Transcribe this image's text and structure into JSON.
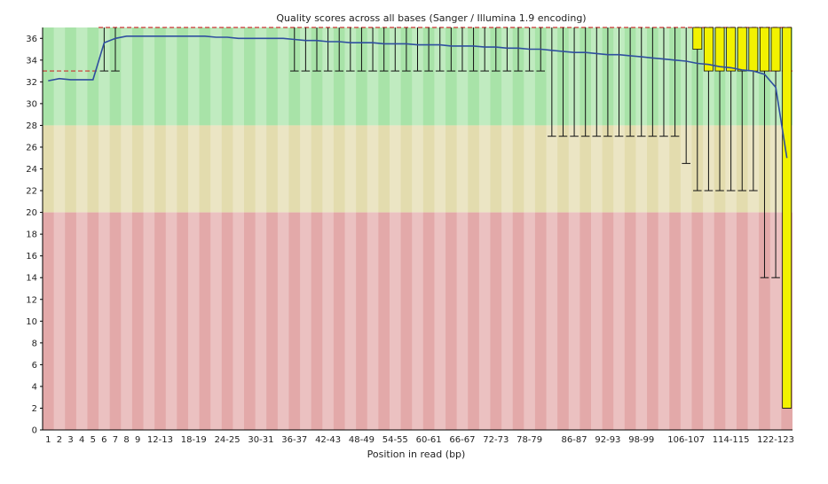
{
  "chart_data": {
    "type": "box",
    "title": "Quality scores across all bases (Sanger / Illumina 1.9 encoding)",
    "xlabel": "Position in read (bp)",
    "ylabel": "",
    "ylim": [
      0,
      37
    ],
    "yticks": [
      0,
      2,
      4,
      6,
      8,
      10,
      12,
      14,
      16,
      18,
      20,
      22,
      24,
      26,
      28,
      30,
      32,
      34,
      36
    ],
    "categories": [
      "1",
      "2",
      "3",
      "4",
      "5",
      "6",
      "7",
      "8",
      "9",
      "10-11",
      "12-13",
      "14-15",
      "16-17",
      "18-19",
      "20-21",
      "22-23",
      "24-25",
      "26-27",
      "28-29",
      "30-31",
      "32-33",
      "34-35",
      "36-37",
      "38-39",
      "40-41",
      "42-43",
      "44-45",
      "46-47",
      "48-49",
      "50-51",
      "52-53",
      "54-55",
      "56-57",
      "58-59",
      "60-61",
      "62-63",
      "64-65",
      "66-67",
      "68-69",
      "70-71",
      "72-73",
      "74-75",
      "76-77",
      "78-79",
      "80-81",
      "82-83",
      "84-85",
      "86-87",
      "88-89",
      "90-91",
      "92-93",
      "94-95",
      "96-97",
      "98-99",
      "100-101",
      "102-103",
      "104-105",
      "106-107",
      "108-109",
      "110-111",
      "112-113",
      "114-115",
      "116-117",
      "118-119",
      "120-121",
      "122-123",
      "124-125"
    ],
    "x_tick_labels": [
      "1",
      "2",
      "3",
      "4",
      "5",
      "6",
      "7",
      "8",
      "9",
      "12-13",
      "18-19",
      "24-25",
      "30-31",
      "36-37",
      "42-43",
      "48-49",
      "54-55",
      "60-61",
      "66-67",
      "72-73",
      "78-79",
      "86-87",
      "92-93",
      "98-99",
      "106-107",
      "114-115",
      "122-123"
    ],
    "quality_zones": [
      {
        "name": "good",
        "from": 28,
        "to": 37,
        "color": "#a8e3a8"
      },
      {
        "name": "reasonable",
        "from": 20,
        "to": 28,
        "color": "#e3dcae"
      },
      {
        "name": "poor",
        "from": 0,
        "to": 20,
        "color": "#e3a9a9"
      }
    ],
    "mean_line_color": "#2f4f9f",
    "box_color": "#f2f200",
    "median_line_color": "#cc3333",
    "series": [
      {
        "name": "Mean",
        "values": [
          32.1,
          32.3,
          32.2,
          32.2,
          32.2,
          35.6,
          36.0,
          36.2,
          36.2,
          36.2,
          36.2,
          36.2,
          36.2,
          36.2,
          36.2,
          36.1,
          36.1,
          36.0,
          36.0,
          36.0,
          36.0,
          36.0,
          35.9,
          35.8,
          35.8,
          35.7,
          35.7,
          35.6,
          35.6,
          35.6,
          35.5,
          35.5,
          35.5,
          35.4,
          35.4,
          35.4,
          35.3,
          35.3,
          35.3,
          35.2,
          35.2,
          35.1,
          35.1,
          35.0,
          35.0,
          34.9,
          34.8,
          34.7,
          34.7,
          34.6,
          34.5,
          34.5,
          34.4,
          34.3,
          34.2,
          34.1,
          34.0,
          33.9,
          33.7,
          33.6,
          33.4,
          33.3,
          33.1,
          33.0,
          32.7,
          31.5,
          25.0
        ]
      }
    ],
    "boxes": {
      "median": [
        33,
        33,
        33,
        33,
        33,
        37,
        37,
        37,
        37,
        37,
        37,
        37,
        37,
        37,
        37,
        37,
        37,
        37,
        37,
        37,
        37,
        37,
        37,
        37,
        37,
        37,
        37,
        37,
        37,
        37,
        37,
        37,
        37,
        37,
        37,
        37,
        37,
        37,
        37,
        37,
        37,
        37,
        37,
        37,
        37,
        37,
        37,
        37,
        37,
        37,
        37,
        37,
        37,
        37,
        37,
        37,
        37,
        37,
        37,
        37,
        37,
        37,
        37,
        37,
        37,
        37,
        37
      ],
      "q1": [
        33,
        33,
        33,
        33,
        33,
        37,
        37,
        37,
        37,
        37,
        37,
        37,
        37,
        37,
        37,
        37,
        37,
        37,
        37,
        37,
        37,
        37,
        37,
        37,
        37,
        37,
        37,
        37,
        37,
        37,
        37,
        37,
        37,
        37,
        37,
        37,
        37,
        37,
        37,
        37,
        37,
        37,
        37,
        37,
        37,
        37,
        37,
        37,
        37,
        37,
        37,
        37,
        37,
        37,
        37,
        37,
        37,
        37,
        35,
        33,
        33,
        33,
        33,
        33,
        33,
        33,
        2
      ],
      "q3": [
        33,
        33,
        33,
        33,
        33,
        37,
        37,
        37,
        37,
        37,
        37,
        37,
        37,
        37,
        37,
        37,
        37,
        37,
        37,
        37,
        37,
        37,
        37,
        37,
        37,
        37,
        37,
        37,
        37,
        37,
        37,
        37,
        37,
        37,
        37,
        37,
        37,
        37,
        37,
        37,
        37,
        37,
        37,
        37,
        37,
        37,
        37,
        37,
        37,
        37,
        37,
        37,
        37,
        37,
        37,
        37,
        37,
        37,
        37,
        37,
        37,
        37,
        37,
        37,
        37,
        37,
        37
      ],
      "p10": [
        33,
        33,
        33,
        33,
        33,
        33,
        33,
        37,
        37,
        37,
        37,
        37,
        37,
        37,
        37,
        37,
        37,
        37,
        37,
        37,
        37,
        37,
        33,
        33,
        33,
        33,
        33,
        33,
        33,
        33,
        33,
        33,
        33,
        33,
        33,
        33,
        33,
        33,
        33,
        33,
        33,
        33,
        33,
        33,
        33,
        27,
        27,
        27,
        27,
        27,
        27,
        27,
        27,
        27,
        27,
        27,
        27,
        24.5,
        22,
        22,
        22,
        22,
        22,
        22,
        14,
        14,
        2
      ],
      "p90": [
        33,
        33,
        33,
        33,
        33,
        37,
        37,
        37,
        37,
        37,
        37,
        37,
        37,
        37,
        37,
        37,
        37,
        37,
        37,
        37,
        37,
        37,
        37,
        37,
        37,
        37,
        37,
        37,
        37,
        37,
        37,
        37,
        37,
        37,
        37,
        37,
        37,
        37,
        37,
        37,
        37,
        37,
        37,
        37,
        37,
        37,
        37,
        37,
        37,
        37,
        37,
        37,
        37,
        37,
        37,
        37,
        37,
        37,
        37,
        37,
        37,
        37,
        37,
        37,
        37,
        37,
        37
      ]
    }
  }
}
